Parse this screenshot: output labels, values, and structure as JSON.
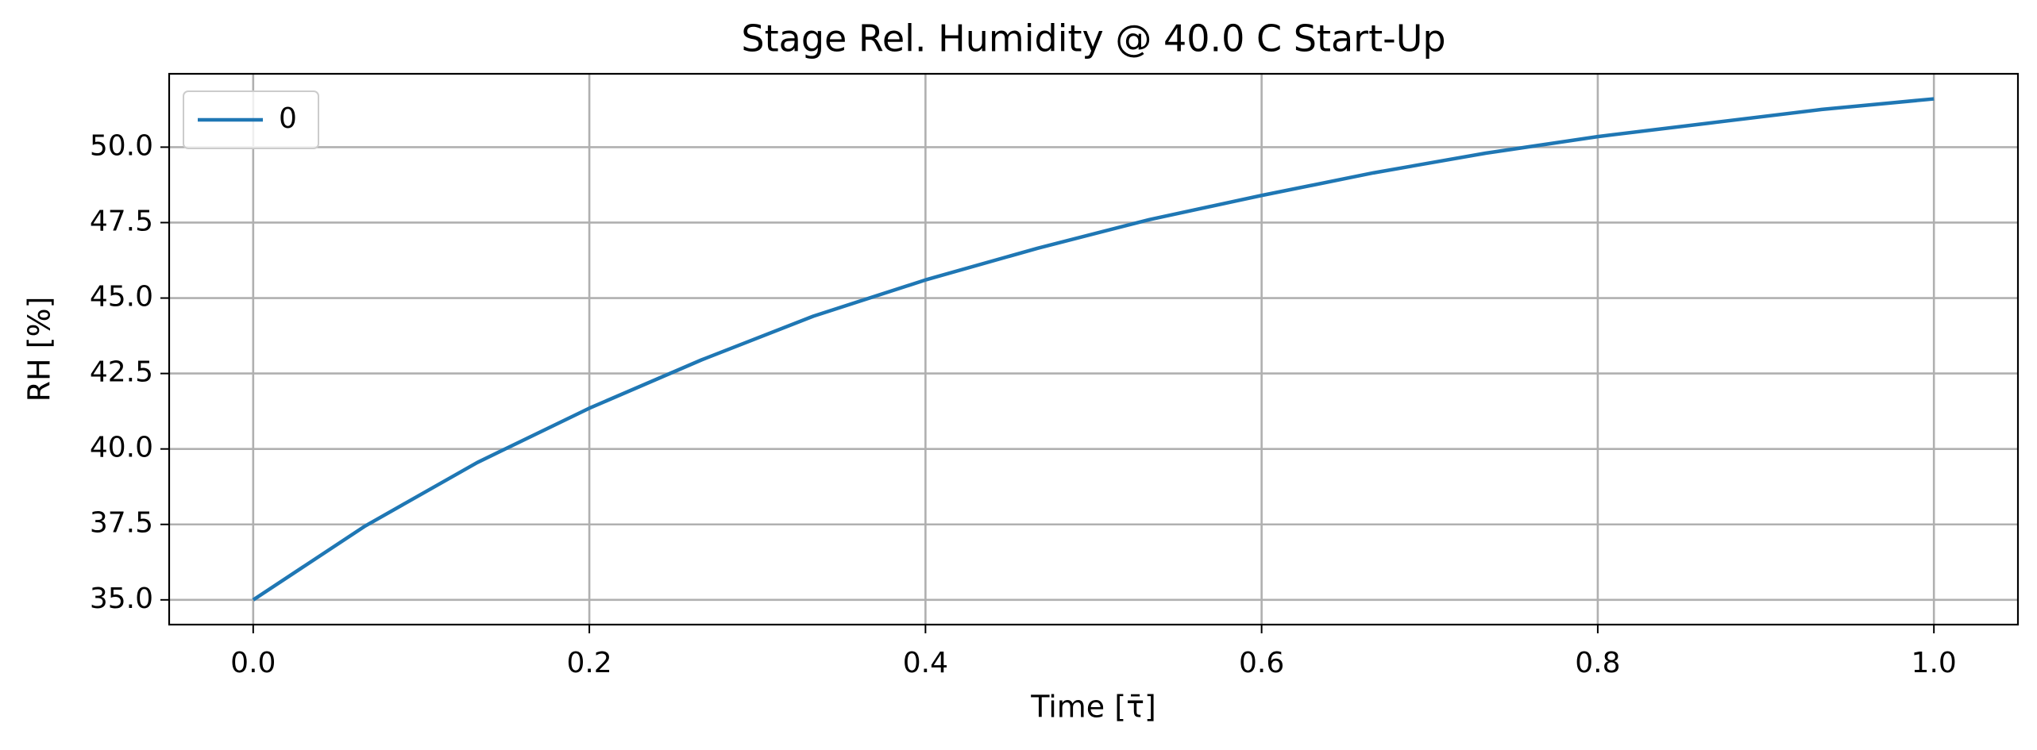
{
  "chart_data": {
    "type": "line",
    "title": "Stage Rel. Humidity @ 40.0 C Start-Up",
    "x_label": "Time [τ̄]",
    "y_label": "RH [%]",
    "x": [
      0,
      0.0667,
      0.1333,
      0.2,
      0.2667,
      0.3333,
      0.4,
      0.4667,
      0.5333,
      0.6,
      0.6667,
      0.7333,
      0.8,
      0.8667,
      0.9333,
      1.0
    ],
    "series": [
      {
        "name": "0",
        "color": "#1f77b4",
        "values": [
          35.0,
          37.45,
          39.55,
          41.35,
          42.95,
          44.4,
          45.6,
          46.65,
          47.6,
          48.4,
          49.15,
          49.8,
          50.35,
          50.8,
          51.25,
          51.6
        ]
      }
    ],
    "xlim": [
      -0.05,
      1.05
    ],
    "ylim": [
      34.18,
      52.43
    ],
    "xticks": [
      {
        "value": 0,
        "label": "0.0"
      },
      0.2,
      0.4,
      0.6,
      0.8,
      {
        "value": 1,
        "label": "1.0"
      }
    ],
    "yticks": [
      {
        "value": 35,
        "label": "35.0"
      },
      37.5,
      {
        "value": 40,
        "label": "40.0"
      },
      42.5,
      {
        "value": 45,
        "label": "45.0"
      },
      47.5,
      {
        "value": 50,
        "label": "50.0"
      }
    ],
    "grid": true,
    "legend_position": "upper-left"
  }
}
